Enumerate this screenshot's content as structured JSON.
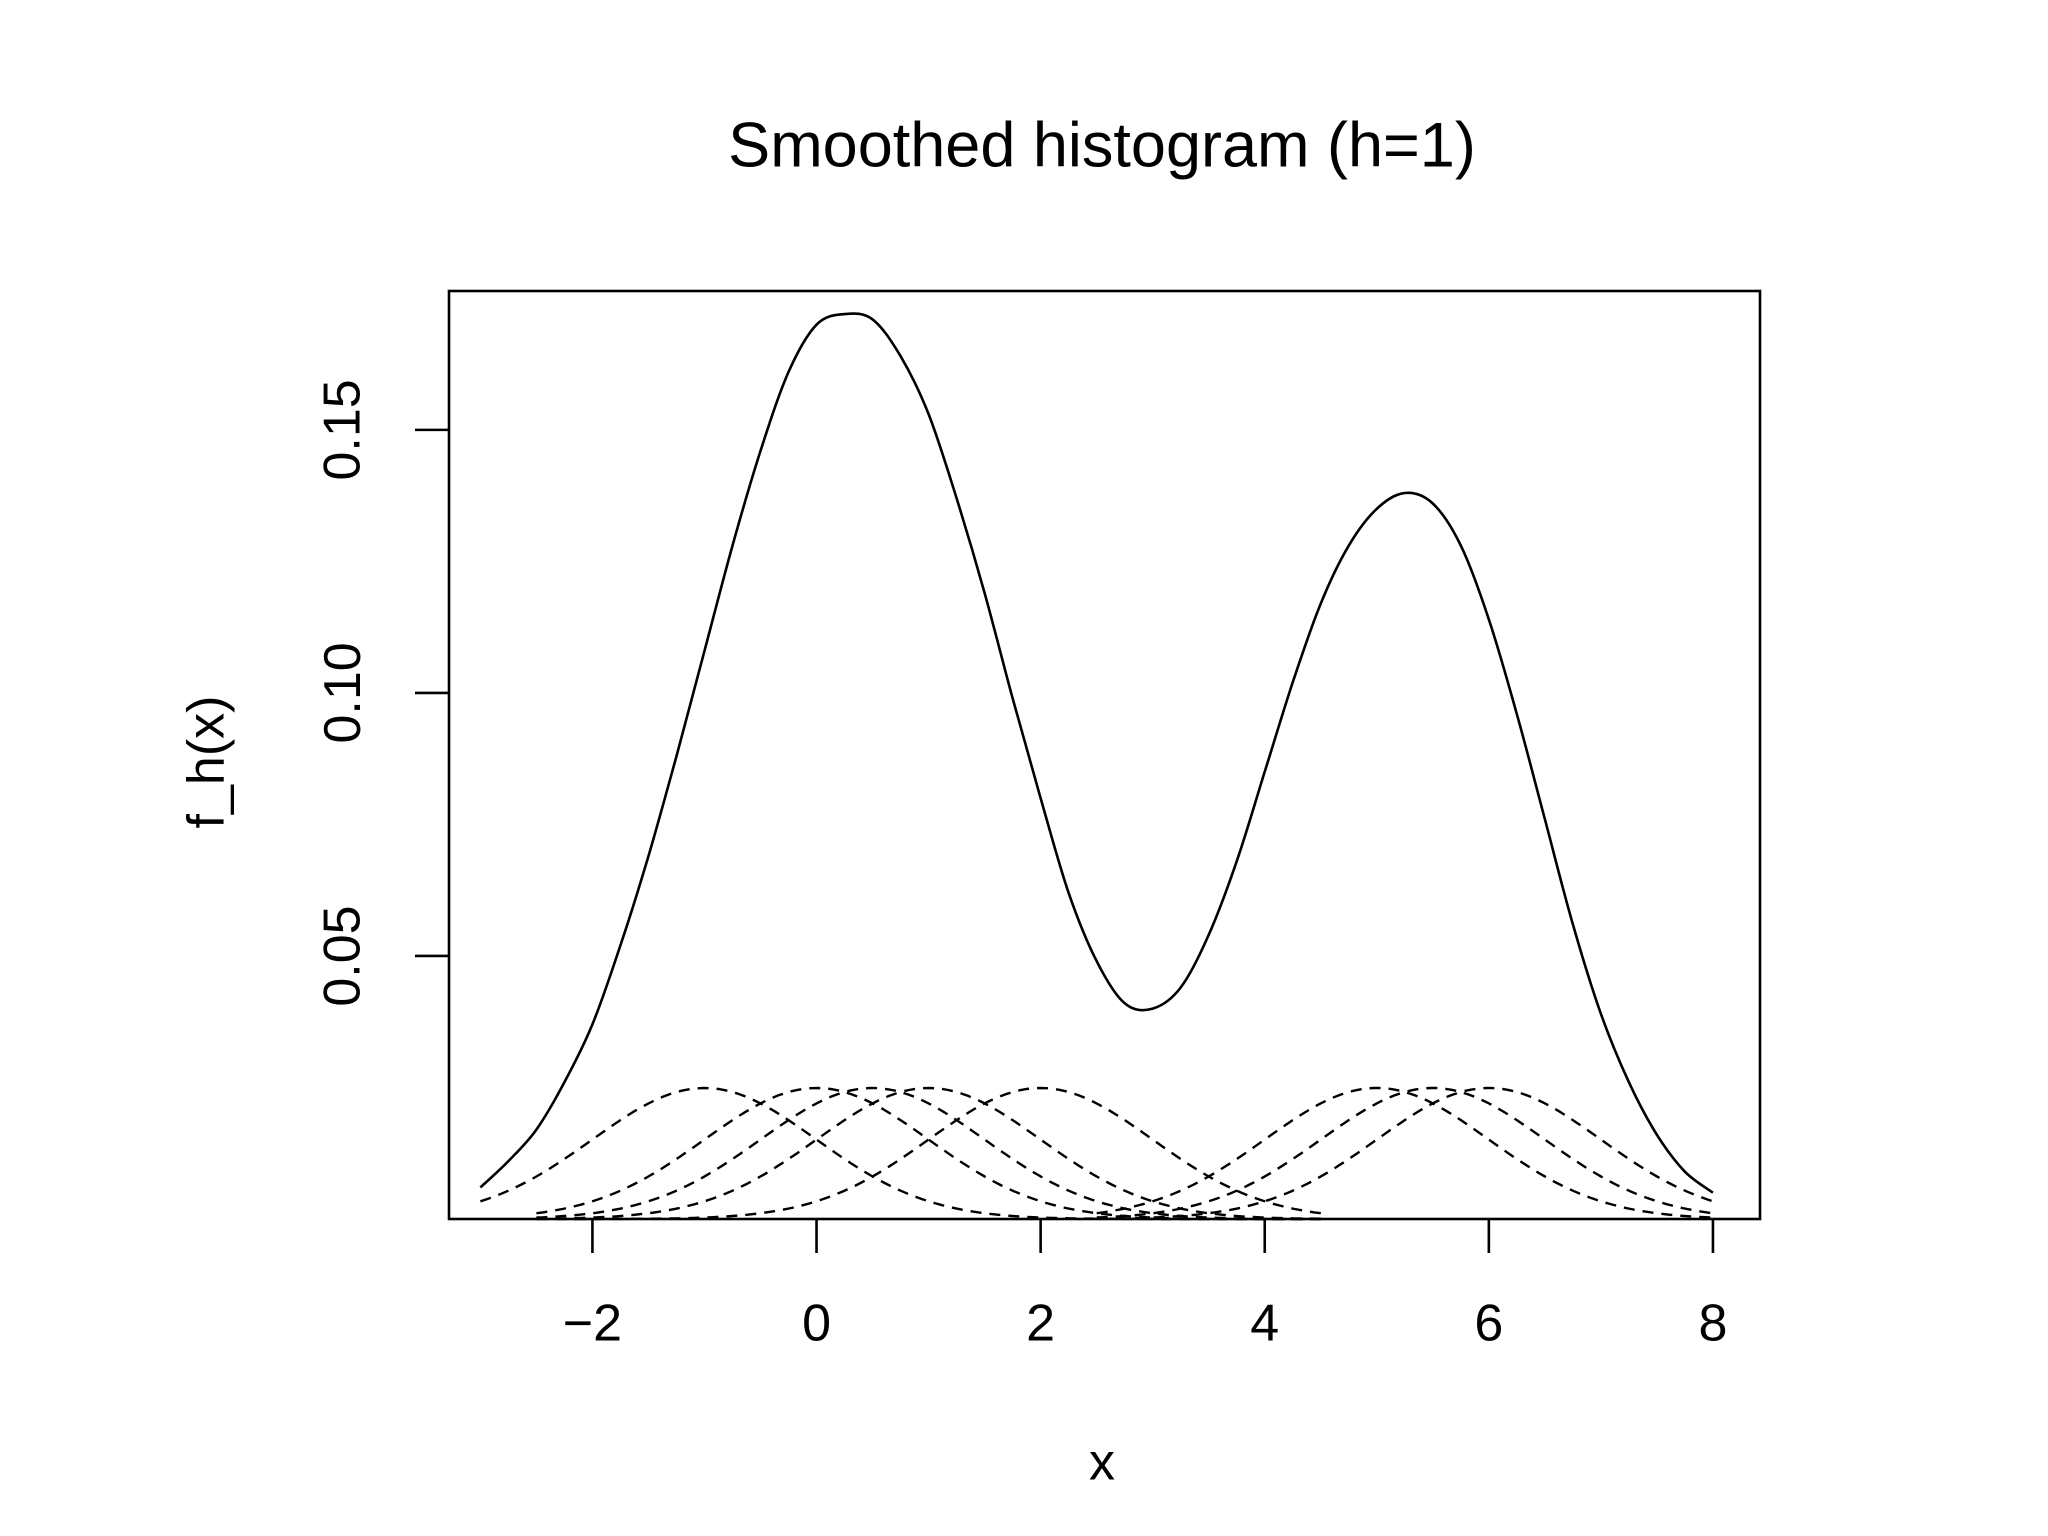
{
  "chart_data": {
    "type": "line",
    "title": "Smoothed histogram (h=1)",
    "xlabel": "x",
    "ylabel": "f_h(x)",
    "xlim": [
      -3.28,
      8.42
    ],
    "ylim": [
      0.0,
      0.1764
    ],
    "x_ticks": [
      -2,
      0,
      2,
      4,
      6,
      8
    ],
    "x_tick_labels": [
      "−2",
      "0",
      "2",
      "4",
      "6",
      "8"
    ],
    "y_ticks": [
      0.05,
      0.1,
      0.15
    ],
    "y_tick_labels": [
      "0.05",
      "0.10",
      "0.15"
    ],
    "grid": false,
    "legend": "none",
    "kernel": "gaussian",
    "bandwidth": 1,
    "observations": [
      -1,
      0,
      0.5,
      1,
      2,
      5,
      5.5,
      6
    ],
    "series": [
      {
        "style": "solid",
        "x": [
          -3.0,
          -2.75,
          -2.5,
          -2.25,
          -2.0,
          -1.75,
          -1.5,
          -1.25,
          -1.0,
          -0.75,
          -0.5,
          -0.25,
          0.0,
          0.25,
          0.5,
          0.75,
          1.0,
          1.25,
          1.5,
          1.75,
          2.0,
          2.25,
          2.5,
          2.75,
          3.0,
          3.25,
          3.5,
          3.75,
          4.0,
          4.25,
          4.5,
          4.75,
          5.0,
          5.25,
          5.5,
          5.75,
          6.0,
          6.25,
          6.5,
          6.75,
          7.0,
          7.25,
          7.5,
          7.75,
          8.0
        ],
        "y": [
          0.006,
          0.011,
          0.017,
          0.026,
          0.037,
          0.052,
          0.069,
          0.088,
          0.108,
          0.128,
          0.146,
          0.161,
          0.17,
          0.172,
          0.171,
          0.164,
          0.153,
          0.137,
          0.119,
          0.099,
          0.08,
          0.062,
          0.049,
          0.041,
          0.04,
          0.044,
          0.054,
          0.068,
          0.085,
          0.102,
          0.117,
          0.128,
          0.135,
          0.138,
          0.136,
          0.128,
          0.114,
          0.096,
          0.076,
          0.056,
          0.039,
          0.026,
          0.016,
          0.009,
          0.005
        ]
      },
      {
        "style": "dashed",
        "center": -1,
        "peak": 0.0249,
        "x_range": [
          -3.0,
          4.5
        ]
      },
      {
        "style": "dashed",
        "center": 0,
        "peak": 0.0249,
        "x_range": [
          -2.5,
          4.5
        ]
      },
      {
        "style": "dashed",
        "center": 0.5,
        "peak": 0.0249,
        "x_range": [
          -2.5,
          4.5
        ]
      },
      {
        "style": "dashed",
        "center": 1,
        "peak": 0.0249,
        "x_range": [
          -2.5,
          4.5
        ]
      },
      {
        "style": "dashed",
        "center": 2,
        "peak": 0.0249,
        "x_range": [
          -2.5,
          4.5
        ]
      },
      {
        "style": "dashed",
        "center": 5,
        "peak": 0.0249,
        "x_range": [
          2.5,
          8.0
        ]
      },
      {
        "style": "dashed",
        "center": 5.5,
        "peak": 0.0249,
        "x_range": [
          2.5,
          8.0
        ]
      },
      {
        "style": "dashed",
        "center": 6,
        "peak": 0.0249,
        "x_range": [
          2.5,
          8.0
        ]
      }
    ]
  }
}
